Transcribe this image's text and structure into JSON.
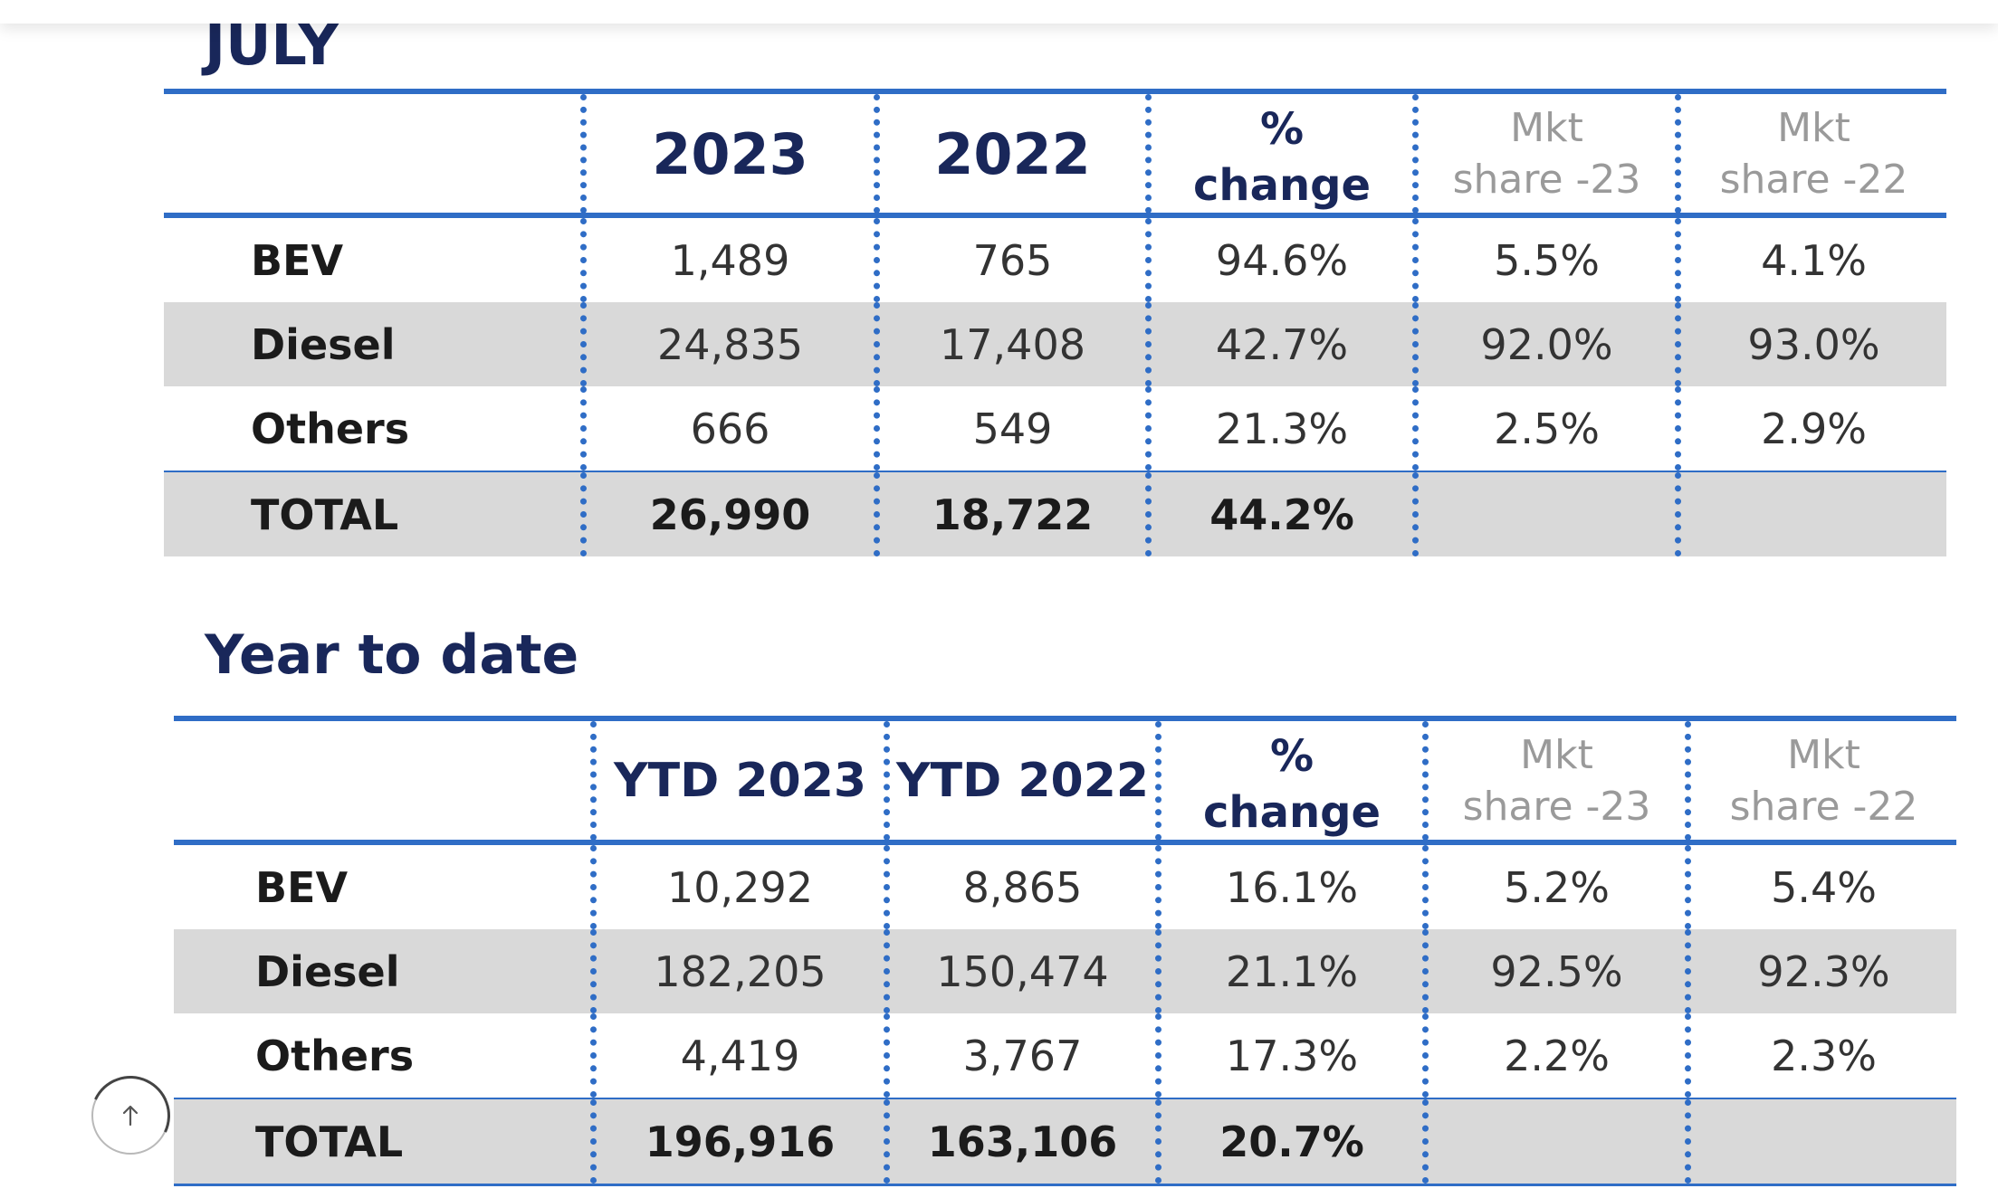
{
  "july": {
    "title": "JULY",
    "headers": {
      "col_2023": "2023",
      "col_2022": "2022",
      "change_line1": "%",
      "change_line2": "change",
      "mkt23_line1": "Mkt",
      "mkt23_line2": "share -23",
      "mkt22_line1": "Mkt",
      "mkt22_line2": "share -22"
    },
    "rows": [
      {
        "label": "BEV",
        "v2023": "1,489",
        "v2022": "765",
        "change": "94.6%",
        "mkt23": "5.5%",
        "mkt22": "4.1%"
      },
      {
        "label": "Diesel",
        "v2023": "24,835",
        "v2022": "17,408",
        "change": "42.7%",
        "mkt23": "92.0%",
        "mkt22": "93.0%"
      },
      {
        "label": "Others",
        "v2023": "666",
        "v2022": "549",
        "change": "21.3%",
        "mkt23": "2.5%",
        "mkt22": "2.9%"
      },
      {
        "label": "TOTAL",
        "v2023": "26,990",
        "v2022": "18,722",
        "change": "44.2%",
        "mkt23": "",
        "mkt22": ""
      }
    ]
  },
  "ytd": {
    "title": "Year to date",
    "headers": {
      "col_2023": "YTD 2023",
      "col_2022": "YTD 2022",
      "change_line1": "%",
      "change_line2": "change",
      "mkt23_line1": "Mkt",
      "mkt23_line2": "share -23",
      "mkt22_line1": "Mkt",
      "mkt22_line2": "share -22"
    },
    "rows": [
      {
        "label": "BEV",
        "v2023": "10,292",
        "v2022": "8,865",
        "change": "16.1%",
        "mkt23": "5.2%",
        "mkt22": "5.4%"
      },
      {
        "label": "Diesel",
        "v2023": "182,205",
        "v2022": "150,474",
        "change": "21.1%",
        "mkt23": "92.5%",
        "mkt22": "92.3%"
      },
      {
        "label": "Others",
        "v2023": "4,419",
        "v2022": "3,767",
        "change": "17.3%",
        "mkt23": "2.2%",
        "mkt22": "2.3%"
      },
      {
        "label": "TOTAL",
        "v2023": "196,916",
        "v2022": "163,106",
        "change": "20.7%",
        "mkt23": "",
        "mkt22": ""
      }
    ]
  },
  "scroll_to_top": {
    "icon": "arrow-up-icon",
    "glyph": "↑"
  },
  "colors": {
    "title_navy": "#19275a",
    "rule_blue": "#2f6dc6",
    "shade_gray": "#d9d9d9",
    "muted_header_gray": "#9a9a9a"
  }
}
